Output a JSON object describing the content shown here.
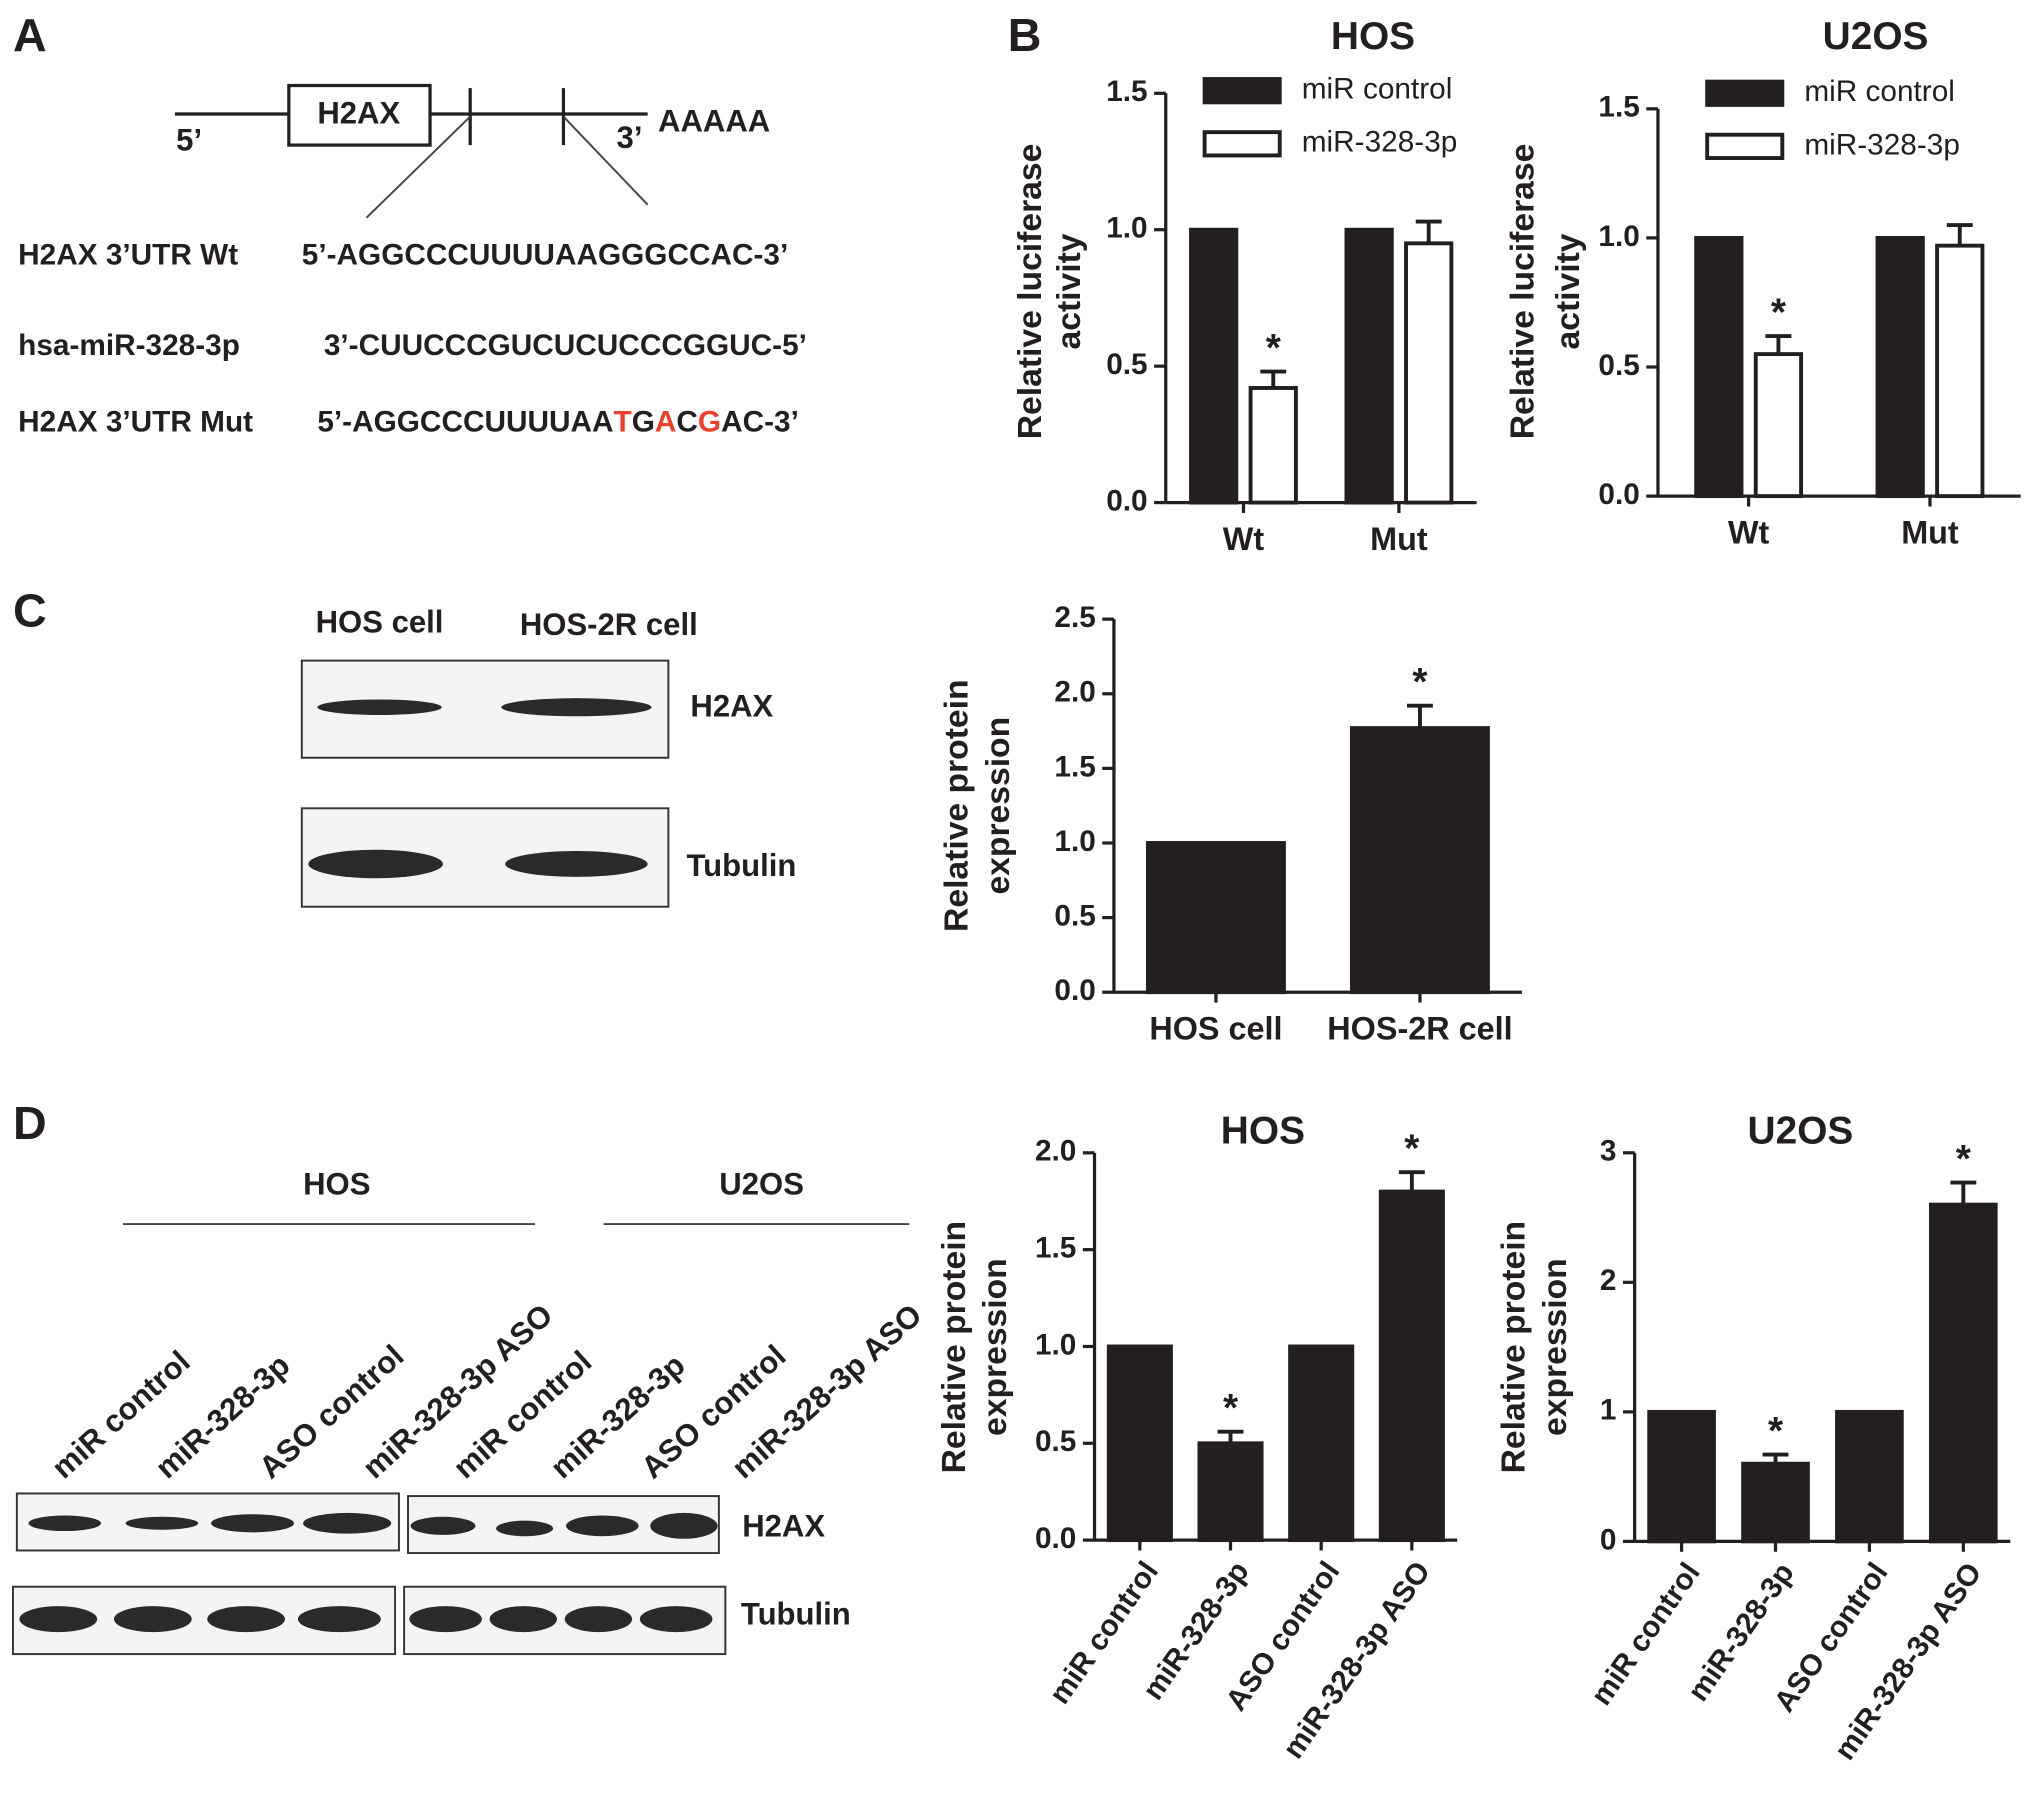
{
  "panel_labels": [
    "A",
    "B",
    "C",
    "D"
  ],
  "diagram": {
    "gene": "H2AX",
    "five_prime": "5’",
    "three_prime": "3’",
    "poly_a": "AAAAA"
  },
  "sequences": [
    {
      "label": "H2AX  3’UTR Wt",
      "segments": [
        {
          "text": "5’-AGGCCCUUUUAAGGGCCAC-3’",
          "color": "#231f20"
        }
      ]
    },
    {
      "label": "hsa-miR-328-3p",
      "segments": [
        {
          "text": "3’-CUUCCCGUCUCUCCCGGUC-5’",
          "color": "#231f20"
        }
      ]
    },
    {
      "label": "H2AX 3’UTR Mut",
      "segments": [
        {
          "text": "5’-AGGCCCUUUUAA",
          "color": "#231f20"
        },
        {
          "text": "T",
          "color": "#e8412c"
        },
        {
          "text": "G",
          "color": "#231f20"
        },
        {
          "text": "A",
          "color": "#e8412c"
        },
        {
          "text": "C",
          "color": "#231f20"
        },
        {
          "text": "G",
          "color": "#e8412c"
        },
        {
          "text": "AC-3’",
          "color": "#231f20"
        }
      ]
    }
  ],
  "blot_c": {
    "columns": [
      "HOS cell",
      "HOS-2R cell"
    ],
    "rows": [
      "H2AX",
      "Tubulin"
    ]
  },
  "blot_d": {
    "groups": [
      {
        "name": "HOS",
        "lanes": [
          "miR control",
          "miR-328-3p",
          "ASO control",
          "miR-328-3p ASO"
        ]
      },
      {
        "name": "U2OS",
        "lanes": [
          "miR control",
          "miR-328-3p",
          "ASO control",
          "miR-328-3p ASO"
        ]
      }
    ],
    "rows": [
      "H2AX",
      "Tubulin"
    ]
  },
  "chart_data": [
    {
      "type": "bar",
      "title": "HOS",
      "ylabel": [
        "Relative luciferase",
        "activity"
      ],
      "categories": [
        "Wt",
        "Mut"
      ],
      "series": [
        {
          "name": "miR control",
          "color": "#231f20",
          "values": [
            1,
            1
          ],
          "errors": [
            null,
            null
          ],
          "significance": [
            null,
            null
          ]
        },
        {
          "name": "miR-328-3p",
          "color": "#ffffff",
          "values": [
            0.42,
            0.95
          ],
          "errors": [
            0.06,
            0.08
          ],
          "significance": [
            "*",
            null
          ]
        }
      ],
      "ylim": [
        0,
        1.5
      ],
      "yticks": [
        {
          "value": 0,
          "label": "0.0"
        },
        0.5,
        {
          "value": 1,
          "label": "1.0"
        },
        1.5
      ],
      "legend": "upper left"
    },
    {
      "type": "bar",
      "title": "U2OS",
      "ylabel": [
        "Relative luciferase",
        "activity"
      ],
      "categories": [
        "Wt",
        "Mut"
      ],
      "series": [
        {
          "name": "miR control",
          "color": "#231f20",
          "values": [
            1,
            1
          ],
          "errors": [
            null,
            null
          ],
          "significance": [
            null,
            null
          ]
        },
        {
          "name": "miR-328-3p",
          "color": "#ffffff",
          "values": [
            0.55,
            0.97
          ],
          "errors": [
            0.07,
            0.08
          ],
          "significance": [
            "*",
            null
          ]
        }
      ],
      "ylim": [
        0,
        1.5
      ],
      "yticks": [
        {
          "value": 0,
          "label": "0.0"
        },
        0.5,
        {
          "value": 1,
          "label": "1.0"
        },
        1.5
      ],
      "legend": "upper left"
    },
    {
      "type": "bar",
      "ylabel": [
        "Relative protein",
        "expression"
      ],
      "categories": [
        "HOS cell",
        "HOS-2R cell"
      ],
      "series": [
        {
          "color": "#231f20",
          "values": [
            1,
            1.77
          ],
          "errors": [
            null,
            0.15
          ],
          "significance": [
            null,
            "*"
          ]
        }
      ],
      "ylim": [
        0,
        2.5
      ],
      "yticks": [
        {
          "value": 0,
          "label": "0.0"
        },
        0.5,
        {
          "value": 1,
          "label": "1.0"
        },
        1.5,
        {
          "value": 2,
          "label": "2.0"
        },
        2.5
      ]
    },
    {
      "type": "bar",
      "title": "HOS",
      "ylabel": [
        "Relative protein",
        "expression"
      ],
      "categories": [
        "miR control",
        "miR-328-3p",
        "ASO control",
        "miR-328-3p ASO"
      ],
      "series": [
        {
          "color": "#231f20",
          "values": [
            1,
            0.5,
            1,
            1.8
          ],
          "errors": [
            null,
            0.06,
            null,
            0.1
          ],
          "significance": [
            null,
            "*",
            null,
            "*"
          ]
        }
      ],
      "ylim": [
        0,
        2
      ],
      "yticks": [
        {
          "value": 0,
          "label": "0.0"
        },
        0.5,
        {
          "value": 1,
          "label": "1.0"
        },
        1.5,
        {
          "value": 2,
          "label": "2.0"
        }
      ]
    },
    {
      "type": "bar",
      "title": "U2OS",
      "ylabel": [
        "Relative protein",
        "expression"
      ],
      "categories": [
        "miR control",
        "miR-328-3p",
        "ASO control",
        "miR-328-3p ASO"
      ],
      "series": [
        {
          "color": "#231f20",
          "values": [
            1,
            0.6,
            1,
            2.6
          ],
          "errors": [
            null,
            0.07,
            null,
            0.17
          ],
          "significance": [
            null,
            "*",
            null,
            "*"
          ]
        }
      ],
      "ylim": [
        0,
        3
      ],
      "yticks": [
        0,
        1,
        2,
        3
      ]
    }
  ]
}
